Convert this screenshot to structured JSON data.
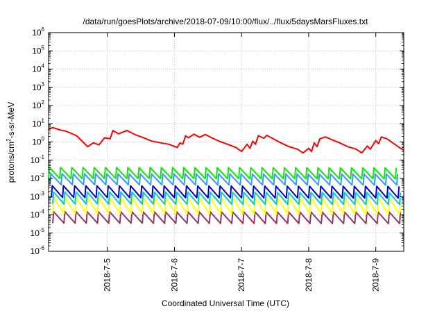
{
  "chart_data": {
    "type": "line",
    "title": "/data/run/goesPlots/archive/2018-07-09/10:00/flux/../flux/5daysMarsFluxes.txt",
    "xlabel": "Coordinated Universal Time (UTC)",
    "ylabel": "protons/cm2-s-sr-MeV",
    "ylabel_parts": {
      "pre": "protons/cm",
      "sup": "2",
      "post": "-s-sr-MeV"
    },
    "y_scale": "log",
    "ylim": [
      1e-06,
      1000000.0
    ],
    "y_ticks": [
      {
        "base": "10",
        "exp": "-6"
      },
      {
        "base": "10",
        "exp": "-5"
      },
      {
        "base": "10",
        "exp": "-4"
      },
      {
        "base": "10",
        "exp": "-3"
      },
      {
        "base": "10",
        "exp": "-2"
      },
      {
        "base": "10",
        "exp": "-1"
      },
      {
        "base": "10",
        "exp": "0"
      },
      {
        "base": "10",
        "exp": "1"
      },
      {
        "base": "10",
        "exp": "2"
      },
      {
        "base": "10",
        "exp": "3"
      },
      {
        "base": "10",
        "exp": "4"
      },
      {
        "base": "10",
        "exp": "5"
      },
      {
        "base": "10",
        "exp": "6"
      }
    ],
    "xlim": [
      "2018-07-04T03:00",
      "2018-07-09T10:00"
    ],
    "x_ticks": [
      "2018-7-5",
      "2018-7-6",
      "2018-7-7",
      "2018-7-8",
      "2018-7-9"
    ],
    "grid": true,
    "series": [
      {
        "color": "#ff0000",
        "values": [
          [
            "2018-07-04T03:00",
            5.0
          ],
          [
            "2018-07-04T04:30",
            6.2
          ],
          [
            "2018-07-04T07:00",
            4.6
          ],
          [
            "2018-07-04T09:00",
            4.0
          ],
          [
            "2018-07-04T11:00",
            3.0
          ],
          [
            "2018-07-04T13:00",
            2.2
          ],
          [
            "2018-07-04T15:00",
            1.1
          ],
          [
            "2018-07-04T17:00",
            0.55
          ],
          [
            "2018-07-04T19:00",
            0.9
          ],
          [
            "2018-07-04T21:00",
            0.7
          ],
          [
            "2018-07-04T23:00",
            1.7
          ],
          [
            "2018-07-05T01:00",
            1.5
          ],
          [
            "2018-07-05T02:00",
            4.2
          ],
          [
            "2018-07-05T04:00",
            2.8
          ],
          [
            "2018-07-05T07:00",
            4.3
          ],
          [
            "2018-07-05T10:00",
            2.5
          ],
          [
            "2018-07-05T13:00",
            1.7
          ],
          [
            "2018-07-05T16:00",
            1.1
          ],
          [
            "2018-07-05T19:00",
            0.9
          ],
          [
            "2018-07-05T22:00",
            0.75
          ],
          [
            "2018-07-06T01:00",
            0.5
          ],
          [
            "2018-07-06T02:00",
            0.9
          ],
          [
            "2018-07-06T03:00",
            0.75
          ],
          [
            "2018-07-06T04:00",
            2.2
          ],
          [
            "2018-07-06T05:00",
            1.7
          ],
          [
            "2018-07-06T07:00",
            2.7
          ],
          [
            "2018-07-06T09:00",
            1.8
          ],
          [
            "2018-07-06T11:00",
            2.6
          ],
          [
            "2018-07-06T13:00",
            1.8
          ],
          [
            "2018-07-06T16:00",
            1.1
          ],
          [
            "2018-07-06T19:00",
            0.75
          ],
          [
            "2018-07-06T22:00",
            0.5
          ],
          [
            "2018-07-07T00:00",
            0.3
          ],
          [
            "2018-07-07T02:00",
            0.75
          ],
          [
            "2018-07-07T03:00",
            0.45
          ],
          [
            "2018-07-07T04:00",
            1.1
          ],
          [
            "2018-07-07T05:00",
            0.75
          ],
          [
            "2018-07-07T06:00",
            2.2
          ],
          [
            "2018-07-07T08:00",
            1.6
          ],
          [
            "2018-07-07T09:00",
            2.3
          ],
          [
            "2018-07-07T11:00",
            1.6
          ],
          [
            "2018-07-07T14:00",
            0.9
          ],
          [
            "2018-07-07T17:00",
            0.55
          ],
          [
            "2018-07-07T20:00",
            0.4
          ],
          [
            "2018-07-07T22:00",
            0.25
          ],
          [
            "2018-07-08T00:00",
            0.45
          ],
          [
            "2018-07-08T01:00",
            0.3
          ],
          [
            "2018-07-08T02:00",
            0.9
          ],
          [
            "2018-07-08T03:00",
            0.55
          ],
          [
            "2018-07-08T04:00",
            1.5
          ],
          [
            "2018-07-08T06:00",
            1.9
          ],
          [
            "2018-07-08T08:00",
            1.4
          ],
          [
            "2018-07-08T11:00",
            0.9
          ],
          [
            "2018-07-08T14:00",
            0.55
          ],
          [
            "2018-07-08T17:00",
            0.4
          ],
          [
            "2018-07-08T19:00",
            0.25
          ],
          [
            "2018-07-08T21:00",
            0.6
          ],
          [
            "2018-07-08T22:00",
            0.4
          ],
          [
            "2018-07-09T00:00",
            1.2
          ],
          [
            "2018-07-09T01:00",
            0.8
          ],
          [
            "2018-07-09T02:00",
            1.9
          ],
          [
            "2018-07-09T04:00",
            1.5
          ],
          [
            "2018-07-09T06:00",
            0.9
          ],
          [
            "2018-07-09T08:00",
            0.55
          ],
          [
            "2018-07-09T10:00",
            0.35
          ]
        ]
      },
      {
        "color": "#00ee00",
        "cycle_hours": 4,
        "low": 0.01,
        "peak": 0.04,
        "first_peak": "2018-07-04T03:00",
        "envelope": [
          [
            0,
            1.0
          ],
          [
            60,
            0.9
          ],
          [
            127,
            0.6
          ]
        ]
      },
      {
        "color": "#3399ff",
        "cycle_hours": 4,
        "low": 0.0045,
        "peak": 0.018,
        "first_peak": "2018-07-04T03:30",
        "envelope": [
          [
            0,
            1.0
          ],
          [
            60,
            0.9
          ],
          [
            127,
            0.55
          ]
        ]
      },
      {
        "color": "#0000cc",
        "cycle_hours": 4,
        "low": 0.0009,
        "peak": 0.004,
        "first_peak": "2018-07-04T04:00",
        "envelope": [
          [
            0,
            1.0
          ],
          [
            60,
            0.85
          ],
          [
            127,
            0.55
          ]
        ]
      },
      {
        "color": "#00cccc",
        "cycle_hours": 4,
        "low": 0.0004,
        "peak": 0.0018,
        "first_peak": "2018-07-04T04:30",
        "envelope": [
          [
            0,
            1.0
          ],
          [
            60,
            0.85
          ],
          [
            127,
            0.6
          ]
        ]
      },
      {
        "color": "#ffff00",
        "cycle_hours": 4,
        "low": 0.00012,
        "peak": 0.0009,
        "first_peak": "2018-07-04T04:30",
        "envelope": [
          [
            0,
            1.0
          ],
          [
            60,
            0.85
          ],
          [
            127,
            0.6
          ]
        ]
      },
      {
        "color": "#993366",
        "cycle_hours": 4,
        "low": 3.5e-05,
        "peak": 0.00015,
        "first_peak": "2018-07-04T04:30",
        "envelope": [
          [
            0,
            1.0
          ],
          [
            60,
            0.9
          ],
          [
            127,
            0.6
          ]
        ]
      }
    ]
  }
}
